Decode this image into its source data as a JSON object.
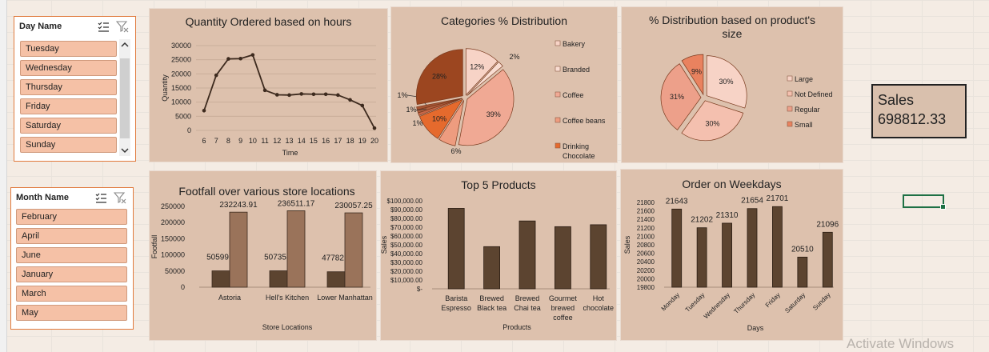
{
  "slicers": {
    "day": {
      "title": "Day Name",
      "items": [
        "Tuesday",
        "Wednesday",
        "Thursday",
        "Friday",
        "Saturday",
        "Sunday"
      ]
    },
    "month": {
      "title": "Month Name",
      "items": [
        "February",
        "April",
        "June",
        "January",
        "March",
        "May"
      ]
    }
  },
  "sales": {
    "label": "Sales",
    "value": "698812.33"
  },
  "watermark": "Activate Windows",
  "chart_data": [
    {
      "id": "hours",
      "type": "line",
      "title": "Quantity Ordered based on hours",
      "xlabel": "Time",
      "ylabel": "Quantity",
      "x": [
        6,
        7,
        8,
        9,
        10,
        11,
        12,
        13,
        14,
        15,
        16,
        17,
        18,
        19,
        20
      ],
      "values": [
        7000,
        19500,
        25300,
        25400,
        26700,
        14200,
        12600,
        12500,
        12900,
        12800,
        12800,
        12500,
        10800,
        8800,
        800
      ],
      "ylim": [
        0,
        30000
      ],
      "yticks": [
        0,
        5000,
        10000,
        15000,
        20000,
        25000,
        30000
      ],
      "grid": true,
      "color": "#3d2a1e"
    },
    {
      "id": "categories",
      "type": "pie",
      "title": "Categories % Distribution",
      "legend_position": "right",
      "slices": [
        {
          "name": "Bakery",
          "value": 12,
          "label": "12%",
          "color": "#f7d3c6"
        },
        {
          "name": "Branded",
          "value": 2,
          "label": "2%",
          "color": "#f9ddd2"
        },
        {
          "name": "Coffee",
          "value": 39,
          "label": "39%",
          "color": "#f0a994"
        },
        {
          "name": "Coffee beans",
          "value": 6,
          "label": "6%",
          "color": "#ee9c7f"
        },
        {
          "name": "Drinking Chocolate",
          "value": 10,
          "label": "10%",
          "color": "#e56a2d"
        },
        {
          "name": "",
          "value": 1,
          "label": "1%",
          "color": "#c86848"
        },
        {
          "name": "",
          "value": 1,
          "label": "1%",
          "color": "#b3603f"
        },
        {
          "name": "",
          "value": 1,
          "label": "1%",
          "color": "#a65535"
        },
        {
          "name": "",
          "value": 28,
          "label": "28%",
          "color": "#9c4620"
        }
      ],
      "legend": [
        "Bakery",
        "Branded",
        "Coffee",
        "Coffee beans",
        "Drinking Chocolate"
      ]
    },
    {
      "id": "size",
      "type": "pie",
      "title": "% Distribution based on product's size",
      "legend_position": "right",
      "slices": [
        {
          "name": "Large",
          "value": 30,
          "label": "30%",
          "color": "#f7d3c6"
        },
        {
          "name": "Not Defined",
          "value": 30,
          "label": "30%",
          "color": "#f4c0af"
        },
        {
          "name": "Regular",
          "value": 31,
          "label": "31%",
          "color": "#eda08a"
        },
        {
          "name": "Small",
          "value": 9,
          "label": "9%",
          "color": "#e9825f"
        }
      ],
      "legend": [
        "Large",
        "Not Defined",
        "Regular",
        "Small"
      ]
    },
    {
      "id": "footfall",
      "type": "bar",
      "title": "Footfall over various store locations",
      "xlabel": "Store Locations",
      "ylabel": "Footfall",
      "categories": [
        "Astoria",
        "Hell's Kitchen",
        "Lower Manhattan"
      ],
      "series": [
        {
          "values": [
            50599,
            50735,
            47782
          ],
          "labels": [
            "50599",
            "50735",
            "47782"
          ],
          "color": "#5c4430"
        },
        {
          "values": [
            232243.91,
            236511.17,
            230057.25
          ],
          "labels": [
            "232243.91",
            "236511.17",
            "230057.25"
          ],
          "color": "#9a735a"
        }
      ],
      "ylim": [
        0,
        250000
      ],
      "yticks": [
        0,
        50000,
        100000,
        150000,
        200000,
        250000
      ]
    },
    {
      "id": "top5",
      "type": "bar",
      "title": "Top 5 Products",
      "xlabel": "Products",
      "ylabel": "Sales",
      "categories": [
        "Barista Espresso",
        "Brewed Black tea",
        "Brewed Chai tea",
        "Gourmet brewed coffee",
        "Hot chocolate"
      ],
      "category_lines": [
        [
          "Barista",
          "Espresso"
        ],
        [
          "Brewed",
          "Black tea"
        ],
        [
          "Brewed",
          "Chai tea"
        ],
        [
          "Gourmet",
          "brewed",
          "coffee"
        ],
        [
          "Hot",
          "chocolate"
        ]
      ],
      "values": [
        91400,
        47900,
        77100,
        70600,
        72800
      ],
      "ylim": [
        0,
        100000
      ],
      "yticks": [
        0,
        10000,
        20000,
        30000,
        40000,
        50000,
        60000,
        70000,
        80000,
        90000,
        100000
      ],
      "ytick_labels": [
        "$-",
        "$10,000.00",
        "$20,000.00",
        "$30,000.00",
        "$40,000.00",
        "$50,000.00",
        "$60,000.00",
        "$70,000.00",
        "$80,000.00",
        "$90,000.00",
        "$100,000.00"
      ],
      "color": "#5c4430"
    },
    {
      "id": "weekdays",
      "type": "bar",
      "title": "Order on Weekdays",
      "xlabel": "Days",
      "ylabel": "Sales",
      "categories": [
        "Monday",
        "Tuesday",
        "Wednesday",
        "Thursday",
        "Friday",
        "Saturday",
        "Sunday"
      ],
      "values": [
        21643,
        21202,
        21310,
        21654,
        21701,
        20510,
        21096
      ],
      "labels": [
        "21643",
        "21202",
        "21310",
        "21654",
        "21701",
        "20510",
        "21096"
      ],
      "ylim": [
        19800,
        21800
      ],
      "yticks": [
        19800,
        20000,
        20200,
        20400,
        20600,
        20800,
        21000,
        21200,
        21400,
        21600,
        21800
      ],
      "color": "#5c4430"
    }
  ]
}
